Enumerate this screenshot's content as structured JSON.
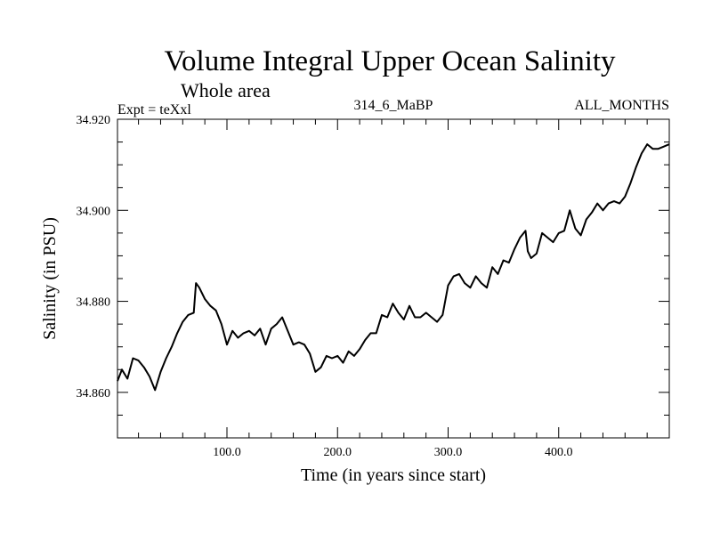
{
  "chart_data": {
    "type": "line",
    "title": "Volume Integral Upper Ocean Salinity",
    "subtitle": "Whole area",
    "header_left": "Expt = teXxl",
    "header_center": "314_6_MaBP",
    "header_right": "ALL_MONTHS",
    "xlabel": "Time (in years since start)",
    "ylabel": "Salinity (in PSU)",
    "xlim": [
      1,
      500
    ],
    "ylim": [
      34.85,
      34.92
    ],
    "x_ticks": [
      100,
      200,
      300,
      400
    ],
    "x_tick_labels": [
      "100.0",
      "200.0",
      "300.0",
      "400.0"
    ],
    "y_ticks": [
      34.86,
      34.88,
      34.9,
      34.92
    ],
    "y_tick_labels": [
      "34.860",
      "34.880",
      "34.900",
      "34.920"
    ],
    "grid": false,
    "series": [
      {
        "name": "Salinity",
        "x": [
          1,
          5,
          10,
          15,
          20,
          25,
          30,
          35,
          40,
          45,
          50,
          55,
          60,
          65,
          70,
          72,
          75,
          80,
          85,
          90,
          95,
          100,
          105,
          110,
          115,
          120,
          125,
          130,
          135,
          140,
          145,
          150,
          155,
          160,
          165,
          170,
          175,
          180,
          185,
          190,
          195,
          200,
          205,
          210,
          215,
          220,
          225,
          230,
          235,
          240,
          245,
          250,
          255,
          260,
          265,
          270,
          275,
          280,
          285,
          290,
          295,
          300,
          305,
          310,
          315,
          320,
          325,
          330,
          335,
          340,
          345,
          350,
          355,
          360,
          365,
          370,
          372,
          375,
          380,
          385,
          390,
          395,
          400,
          405,
          410,
          415,
          420,
          425,
          430,
          435,
          440,
          445,
          450,
          455,
          460,
          465,
          470,
          475,
          480,
          485,
          490,
          495,
          500
        ],
        "values": [
          34.8625,
          34.865,
          34.863,
          34.8675,
          34.867,
          34.8655,
          34.8635,
          34.8605,
          34.8645,
          34.8675,
          34.87,
          34.873,
          34.8755,
          34.877,
          34.8775,
          34.884,
          34.883,
          34.8805,
          34.879,
          34.878,
          34.875,
          34.8705,
          34.8735,
          34.872,
          34.873,
          34.8735,
          34.8725,
          34.874,
          34.8705,
          34.874,
          34.875,
          34.8765,
          34.8735,
          34.8705,
          34.871,
          34.8705,
          34.8685,
          34.8645,
          34.8655,
          34.868,
          34.8675,
          34.868,
          34.8665,
          34.869,
          34.868,
          34.8695,
          34.8715,
          34.873,
          34.873,
          34.877,
          34.8765,
          34.8795,
          34.8775,
          34.876,
          34.879,
          34.8765,
          34.8765,
          34.8775,
          34.8765,
          34.8755,
          34.877,
          34.8835,
          34.8855,
          34.886,
          34.884,
          34.883,
          34.8855,
          34.884,
          34.883,
          34.8875,
          34.886,
          34.889,
          34.8885,
          34.8915,
          34.894,
          34.8955,
          34.891,
          34.8895,
          34.8905,
          34.895,
          34.894,
          34.893,
          34.895,
          34.8955,
          34.9,
          34.896,
          34.8945,
          34.898,
          34.8995,
          34.9015,
          34.9,
          34.9015,
          34.902,
          34.9015,
          34.903,
          34.906,
          34.9095,
          34.9125,
          34.9145,
          34.9135,
          34.9135,
          34.914,
          34.9145
        ]
      }
    ]
  }
}
